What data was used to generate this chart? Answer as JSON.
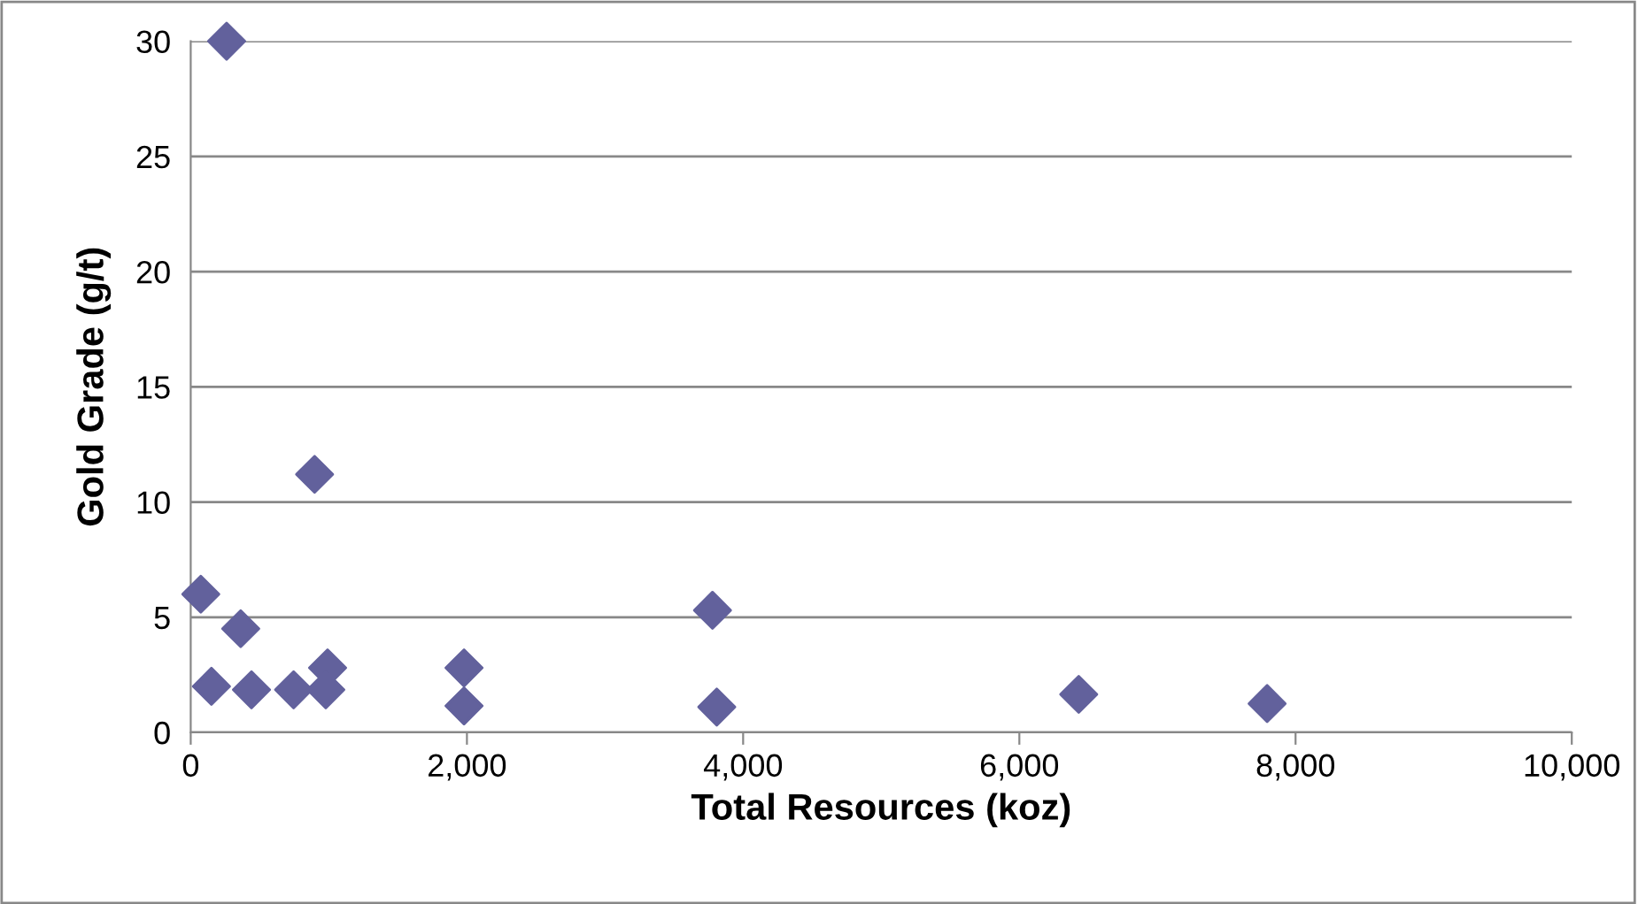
{
  "chart_data": {
    "type": "scatter",
    "xlabel": "Total Resources (koz)",
    "ylabel": "Gold Grade (g/t)",
    "x": [
      260,
      897,
      73,
      362,
      150,
      440,
      745,
      991,
      978,
      1979,
      1979,
      3778,
      3809,
      6430,
      7794
    ],
    "values": [
      30,
      11.2,
      6.0,
      4.5,
      2.0,
      1.85,
      1.85,
      2.8,
      1.85,
      2.8,
      1.15,
      5.3,
      1.1,
      1.65,
      1.25
    ],
    "color": "#62619c",
    "marker": "diamond",
    "grid": "y",
    "xlim": [
      0,
      10000
    ],
    "xticks": [
      {
        "value": 0,
        "label": "0"
      },
      {
        "value": 2000,
        "label": "2,000"
      },
      {
        "value": 4000,
        "label": "4,000"
      },
      {
        "value": 6000,
        "label": "6,000"
      },
      {
        "value": 8000,
        "label": "8,000"
      },
      {
        "value": 10000,
        "label": "10,000"
      }
    ],
    "ylim": [
      0,
      30
    ],
    "yticks": [
      0,
      5,
      10,
      15,
      20,
      25,
      30
    ]
  }
}
